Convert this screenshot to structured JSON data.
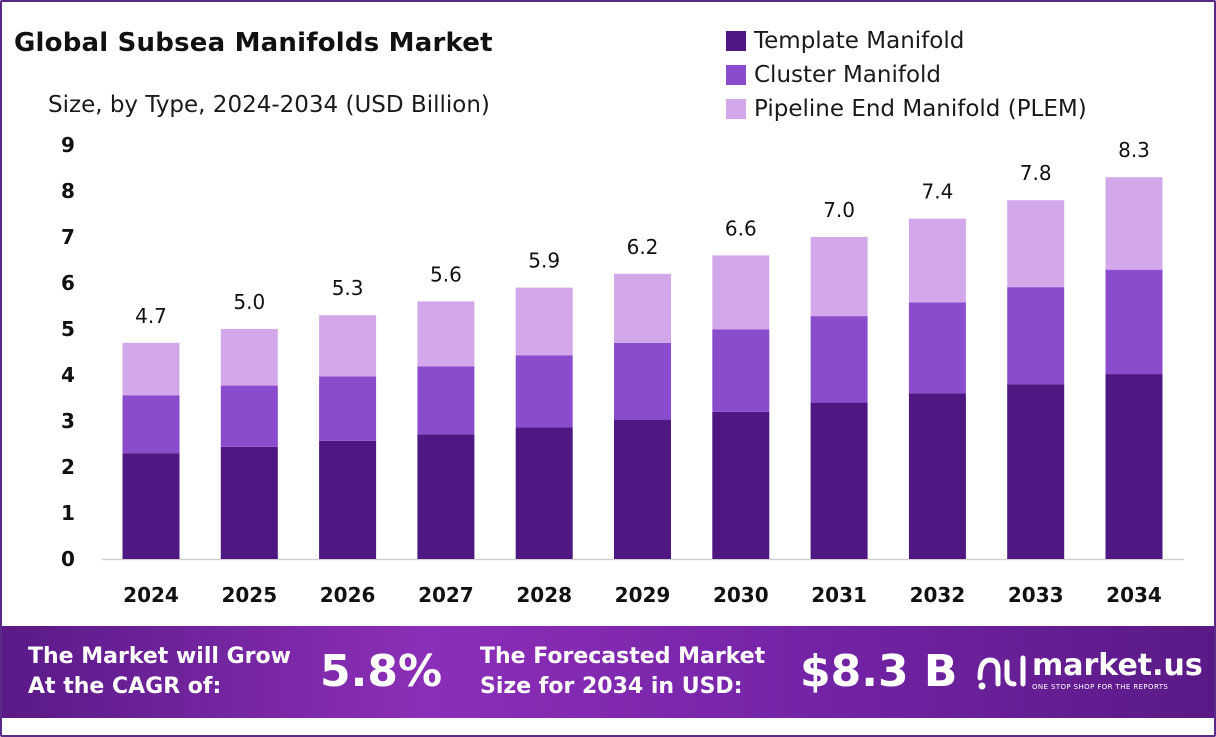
{
  "title": "Global Subsea Manifolds Market",
  "subtitle": "Size, by Type, 2024-2034 (USD Billion)",
  "colors": {
    "template": "#4e1781",
    "cluster": "#8a4ccc",
    "plem": "#d3a8ea",
    "footer": "#7524a8"
  },
  "chart_data": {
    "type": "bar",
    "stacked": true,
    "categories": [
      "2024",
      "2025",
      "2026",
      "2027",
      "2028",
      "2029",
      "2030",
      "2031",
      "2032",
      "2033",
      "2034"
    ],
    "series": [
      {
        "name": "Template Manifold",
        "values": [
          2.3,
          2.44,
          2.57,
          2.71,
          2.86,
          3.03,
          3.2,
          3.4,
          3.6,
          3.8,
          4.02
        ]
      },
      {
        "name": "Cluster Manifold",
        "values": [
          1.26,
          1.33,
          1.4,
          1.48,
          1.57,
          1.67,
          1.79,
          1.88,
          1.98,
          2.11,
          2.27
        ]
      },
      {
        "name": "Pipeline End Manifold (PLEM)",
        "values": [
          1.14,
          1.23,
          1.33,
          1.41,
          1.47,
          1.5,
          1.61,
          1.72,
          1.82,
          1.89,
          2.01
        ]
      }
    ],
    "totals": [
      "4.7",
      "5.0",
      "5.3",
      "5.6",
      "5.9",
      "6.2",
      "6.6",
      "7.0",
      "7.4",
      "7.8",
      "8.3"
    ],
    "yticks": [
      "0",
      "1",
      "2",
      "3",
      "4",
      "5",
      "6",
      "7",
      "8",
      "9"
    ],
    "ylim": [
      0,
      9
    ],
    "grid": false,
    "legend_position": "top-right"
  },
  "footer": {
    "cagr_line1": "The Market will Grow",
    "cagr_line2": "At the CAGR of:",
    "cagr_value": "5.8%",
    "forecast_line1": "The Forecasted Market",
    "forecast_line2": "Size for 2034 in USD:",
    "forecast_value": "$8.3 B",
    "brand": "market.us",
    "tagline": "ONE STOP SHOP FOR THE REPORTS"
  }
}
